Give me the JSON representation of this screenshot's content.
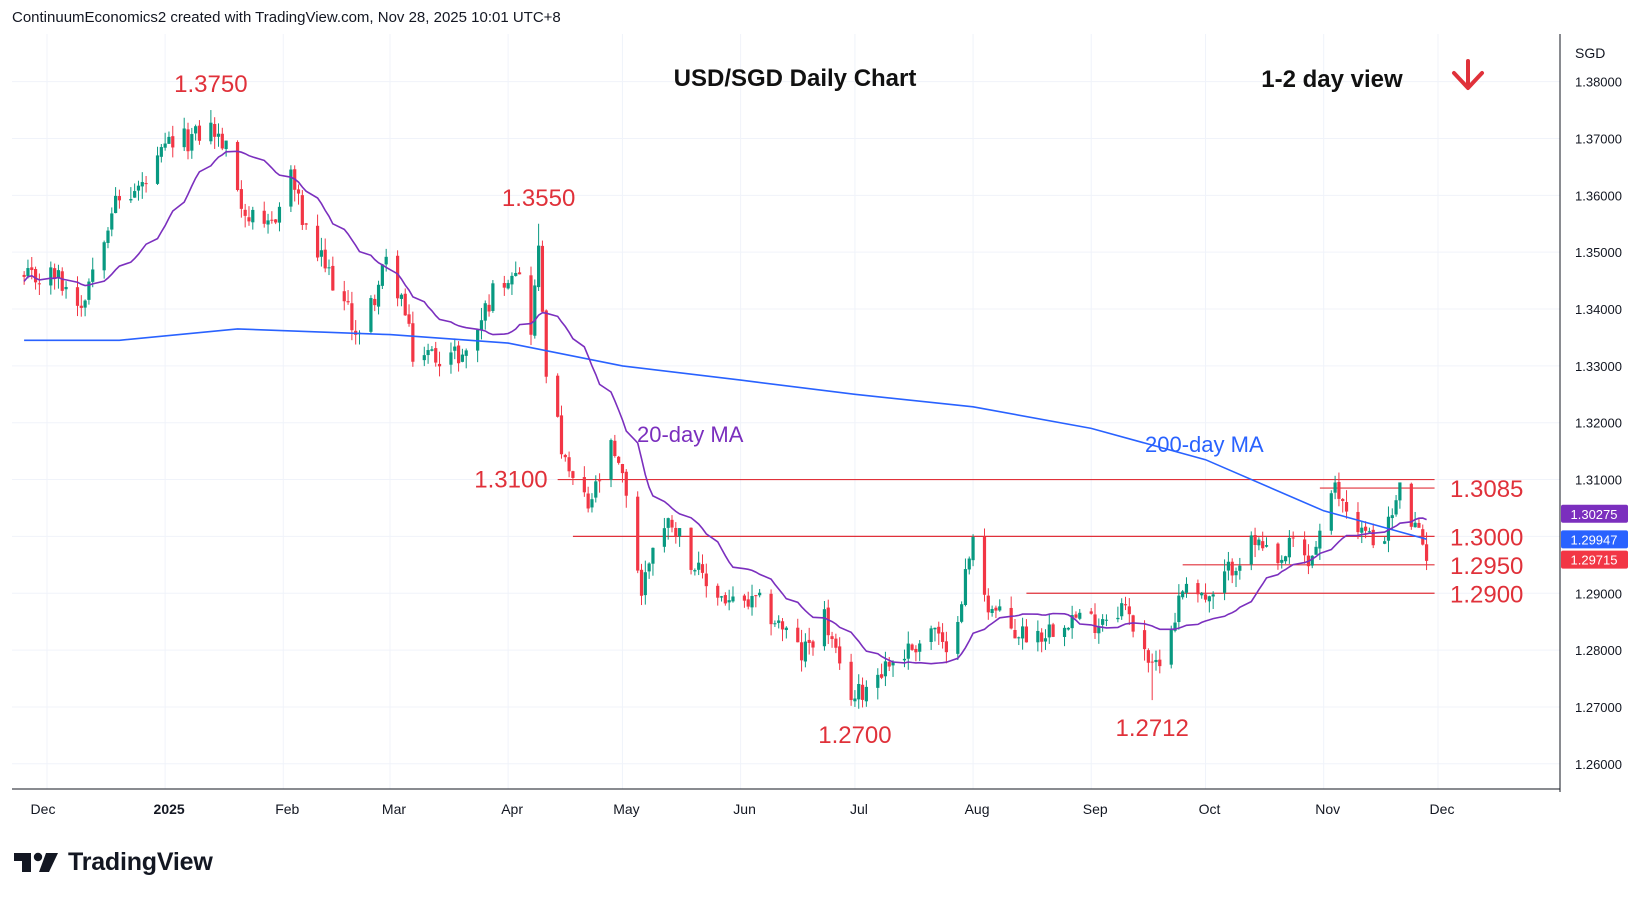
{
  "header": {
    "credit": "ContinuumEconomics2 created with TradingView.com, Nov 28, 2025 10:01 UTC+8"
  },
  "brand": {
    "name": "TradingView",
    "icon": "tradingview-logo-icon"
  },
  "colors": {
    "bull": "#089981",
    "bear": "#f23645",
    "ma20": "#7b2fbe",
    "ma200": "#2962ff",
    "annotation": "#e0313a",
    "level_line": "#e0313a",
    "grid": "#f0f3fa"
  },
  "chart_data": {
    "type": "candlestick",
    "title": "USD/SGD Daily Chart",
    "view_label": "1-2 day view",
    "view_icon": "red-down-arrow-icon",
    "currency_label": "SGD",
    "y_axis": {
      "range": [
        1.2575,
        1.3875
      ],
      "ticks": [
        "1.38000",
        "1.37000",
        "1.36000",
        "1.35000",
        "1.34000",
        "1.33000",
        "1.32000",
        "1.31000",
        "1.30000",
        "1.29000",
        "1.28000",
        "1.27000",
        "1.26000"
      ]
    },
    "x_axis": {
      "months": [
        "Dec",
        "2025",
        "Feb",
        "Mar",
        "Apr",
        "May",
        "Jun",
        "Jul",
        "Aug",
        "Sep",
        "Oct",
        "Nov",
        "Dec"
      ]
    },
    "price_badges": [
      {
        "label": "1.30275",
        "value": 1.30275,
        "color": "#7b2fbe"
      },
      {
        "label": "1.29947",
        "value": 1.29947,
        "color": "#2962ff"
      },
      {
        "label": "1.29715",
        "value": 1.29715,
        "color": "#f23645"
      }
    ],
    "levels": [
      {
        "label": "1.3100",
        "value": 1.31,
        "from": "2025-04-14",
        "to": "2025-11-28"
      },
      {
        "label": "1.3085",
        "value": 1.3085,
        "from": "2025-10-31",
        "to": "2025-11-28"
      },
      {
        "label": "1.3000",
        "value": 1.3,
        "from": "2025-04-18",
        "to": "2025-11-28"
      },
      {
        "label": "1.2950",
        "value": 1.295,
        "from": "2025-09-25",
        "to": "2025-11-28"
      },
      {
        "label": "1.2900",
        "value": 1.29,
        "from": "2025-08-15",
        "to": "2025-11-28"
      }
    ],
    "annotations": [
      {
        "label": "1.3750",
        "value": 1.375,
        "date": "2025-01-13"
      },
      {
        "label": "1.3550",
        "value": 1.355,
        "date": "2025-04-09"
      },
      {
        "label": "1.2700",
        "value": 1.27,
        "date": "2025-07-01"
      },
      {
        "label": "1.2712",
        "value": 1.2712,
        "date": "2025-09-17"
      }
    ],
    "series_labels": [
      {
        "label": "20-day MA",
        "series": "ma20"
      },
      {
        "label": "200-day MA",
        "series": "ma200"
      }
    ],
    "anchors": [
      [
        "2024-11-25",
        1.345
      ],
      [
        "2024-12-03",
        1.346
      ],
      [
        "2024-12-10",
        1.341
      ],
      [
        "2024-12-18",
        1.358
      ],
      [
        "2024-12-27",
        1.362
      ],
      [
        "2025-01-02",
        1.369
      ],
      [
        "2025-01-08",
        1.37
      ],
      [
        "2025-01-13",
        1.372
      ],
      [
        "2025-01-17",
        1.368
      ],
      [
        "2025-01-22",
        1.357
      ],
      [
        "2025-01-27",
        1.353
      ],
      [
        "2025-01-31",
        1.358
      ],
      [
        "2025-02-03",
        1.364
      ],
      [
        "2025-02-07",
        1.353
      ],
      [
        "2025-02-14",
        1.345
      ],
      [
        "2025-02-21",
        1.335
      ],
      [
        "2025-02-28",
        1.348
      ],
      [
        "2025-03-04",
        1.342
      ],
      [
        "2025-03-07",
        1.332
      ],
      [
        "2025-03-14",
        1.332
      ],
      [
        "2025-03-21",
        1.332
      ],
      [
        "2025-03-28",
        1.343
      ],
      [
        "2025-04-03",
        1.348
      ],
      [
        "2025-04-07",
        1.337
      ],
      [
        "2025-04-09",
        1.35
      ],
      [
        "2025-04-11",
        1.33
      ],
      [
        "2025-04-16",
        1.312
      ],
      [
        "2025-04-22",
        1.305
      ],
      [
        "2025-04-28",
        1.315
      ],
      [
        "2025-05-02",
        1.308
      ],
      [
        "2025-05-06",
        1.29
      ],
      [
        "2025-05-09",
        1.299
      ],
      [
        "2025-05-14",
        1.303
      ],
      [
        "2025-05-22",
        1.292
      ],
      [
        "2025-05-30",
        1.288
      ],
      [
        "2025-06-06",
        1.288
      ],
      [
        "2025-06-12",
        1.284
      ],
      [
        "2025-06-17",
        1.279
      ],
      [
        "2025-06-23",
        1.286
      ],
      [
        "2025-06-27",
        1.276
      ],
      [
        "2025-07-01",
        1.2715
      ],
      [
        "2025-07-08",
        1.277
      ],
      [
        "2025-07-15",
        1.28
      ],
      [
        "2025-07-22",
        1.284
      ],
      [
        "2025-07-25",
        1.278
      ],
      [
        "2025-07-29",
        1.29
      ],
      [
        "2025-08-01",
        1.299
      ],
      [
        "2025-08-05",
        1.288
      ],
      [
        "2025-08-12",
        1.283
      ],
      [
        "2025-08-19",
        1.283
      ],
      [
        "2025-08-26",
        1.286
      ],
      [
        "2025-09-02",
        1.285
      ],
      [
        "2025-09-09",
        1.288
      ],
      [
        "2025-09-15",
        1.281
      ],
      [
        "2025-09-17",
        1.276
      ],
      [
        "2025-09-22",
        1.284
      ],
      [
        "2025-09-26",
        1.293
      ],
      [
        "2025-10-02",
        1.288
      ],
      [
        "2025-10-08",
        1.295
      ],
      [
        "2025-10-14",
        1.299
      ],
      [
        "2025-10-20",
        1.294
      ],
      [
        "2025-10-24",
        1.299
      ],
      [
        "2025-10-28",
        1.295
      ],
      [
        "2025-11-04",
        1.308
      ],
      [
        "2025-11-10",
        1.302
      ],
      [
        "2025-11-14",
        1.299
      ],
      [
        "2025-11-18",
        1.302
      ],
      [
        "2025-11-21",
        1.308
      ],
      [
        "2025-11-25",
        1.301
      ],
      [
        "2025-11-28",
        1.2972
      ]
    ],
    "ma200_points": [
      [
        "2024-11-25",
        1.3345
      ],
      [
        "2024-12-20",
        1.3345
      ],
      [
        "2025-01-20",
        1.3365
      ],
      [
        "2025-03-01",
        1.3355
      ],
      [
        "2025-04-01",
        1.334
      ],
      [
        "2025-05-01",
        1.33
      ],
      [
        "2025-06-01",
        1.3275
      ],
      [
        "2025-07-01",
        1.325
      ],
      [
        "2025-08-01",
        1.3228
      ],
      [
        "2025-09-01",
        1.319
      ],
      [
        "2025-10-01",
        1.3135
      ],
      [
        "2025-11-01",
        1.3045
      ],
      [
        "2025-11-28",
        1.2995
      ]
    ]
  }
}
